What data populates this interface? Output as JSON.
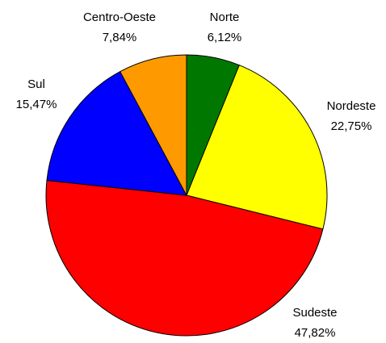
{
  "chart_data": {
    "type": "pie",
    "categories": [
      "Norte",
      "Nordeste",
      "Sudeste",
      "Sul",
      "Centro-Oeste"
    ],
    "values": [
      6.12,
      22.75,
      47.82,
      15.47,
      7.84
    ],
    "value_labels": [
      "6,12%",
      "22,75%",
      "47,82%",
      "15,47%",
      "7,84%"
    ],
    "colors": [
      "#007800",
      "#ffff00",
      "#ff0000",
      "#0000ff",
      "#ff9900"
    ]
  }
}
